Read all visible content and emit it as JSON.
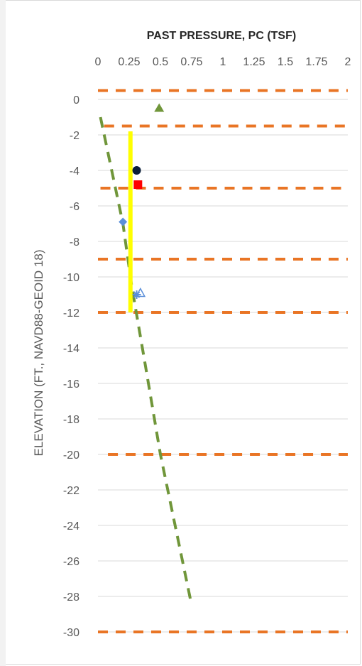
{
  "chart_data": {
    "type": "scatter",
    "title": "PAST PRESSURE, PC (TSF)",
    "xlabel": "PAST PRESSURE, PC (TSF)",
    "ylabel": "ELEVATION (FT., NAVD88-GEOID 18)",
    "x_axis_position": "top",
    "xlim": [
      0,
      2
    ],
    "ylim": [
      -30,
      1
    ],
    "x_ticks": [
      "0",
      "0.25",
      "0.5",
      "0.75",
      "1",
      "1.25",
      "1.5",
      "1.75",
      "2"
    ],
    "y_ticks": [
      "0",
      "-2",
      "-4",
      "-6",
      "-8",
      "-10",
      "-12",
      "-14",
      "-16",
      "-18",
      "-20",
      "-22",
      "-24",
      "-26",
      "-28",
      "-30"
    ],
    "x_tick_values": [
      0,
      0.25,
      0.5,
      0.75,
      1,
      1.25,
      1.5,
      1.75,
      2
    ],
    "y_tick_values": [
      0,
      -2,
      -4,
      -6,
      -8,
      -10,
      -12,
      -14,
      -16,
      -18,
      -20,
      -22,
      -24,
      -26,
      -28,
      -30
    ],
    "grid": {
      "horizontal": true,
      "vertical": false
    },
    "colors": {
      "layer_boundary": "#E97525",
      "trend_line": "#70963A",
      "yellow_line": "#FFFF00",
      "circle": "#0B1F3A",
      "square": "#FF0000",
      "diamond": "#5B8FD9",
      "triangle": "#70963A",
      "star": "#5B8FD9",
      "grid": "#d9d9d9",
      "axis_text": "#595959"
    },
    "horizontal_lines": [
      {
        "y": 0.5,
        "x": [
          0,
          2
        ]
      },
      {
        "y": -1.5,
        "x": [
          0.05,
          2
        ]
      },
      {
        "y": -5,
        "x": [
          0.02,
          2
        ]
      },
      {
        "y": -9,
        "x": [
          0,
          2
        ]
      },
      {
        "y": -12,
        "x": [
          0,
          2
        ]
      },
      {
        "y": -20,
        "x": [
          0.08,
          2
        ]
      },
      {
        "y": -30,
        "x": [
          0,
          2
        ]
      }
    ],
    "trend_line": {
      "x": [
        0.02,
        0.2,
        0.27,
        0.38,
        0.5,
        0.75
      ],
      "y": [
        -1,
        -7,
        -10.5,
        -15,
        -20,
        -28.5
      ]
    },
    "vertical_line": {
      "x": 0.26,
      "y": [
        -1.8,
        -12
      ]
    },
    "points": [
      {
        "marker": "circle",
        "x": 0.31,
        "y": -4
      },
      {
        "marker": "square",
        "x": 0.32,
        "y": -4.8
      },
      {
        "marker": "diamond",
        "x": 0.2,
        "y": -6.9
      },
      {
        "marker": "triangle",
        "x": 0.49,
        "y": -0.5
      },
      {
        "marker": "star",
        "x": 0.31,
        "y": -11
      },
      {
        "marker": "triangle-open",
        "x": 0.34,
        "y": -10.9
      }
    ]
  }
}
